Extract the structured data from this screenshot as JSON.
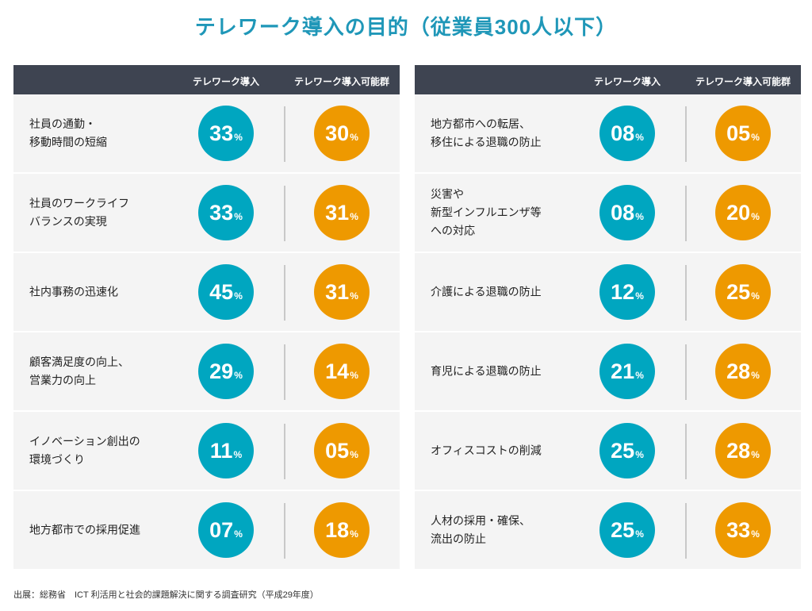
{
  "title": "テレワーク導入の目的（従業員300人以下）",
  "columns": [
    "テレワーク導入",
    "テレワーク導入可能群"
  ],
  "colors": {
    "introduced": "#00a6c0",
    "possible": "#ee9900",
    "header": "#3e4451",
    "title": "#1f97b8"
  },
  "unit": "%",
  "left": [
    {
      "label": "社員の通勤・\n移動時間の短縮",
      "introduced": "33",
      "possible": "30"
    },
    {
      "label": "社員のワークライフ\nバランスの実現",
      "introduced": "33",
      "possible": "31"
    },
    {
      "label": "社内事務の迅速化",
      "introduced": "45",
      "possible": "31"
    },
    {
      "label": "顧客満足度の向上、\n営業力の向上",
      "introduced": "29",
      "possible": "14"
    },
    {
      "label": "イノベーション創出の\n環境づくり",
      "introduced": "11",
      "possible": "05"
    },
    {
      "label": "地方都市での採用促進",
      "introduced": "07",
      "possible": "18"
    }
  ],
  "right": [
    {
      "label": "地方都市への転居、\n移住による退職の防止",
      "introduced": "08",
      "possible": "05"
    },
    {
      "label": "災害や\n新型インフルエンザ等\nへの対応",
      "introduced": "08",
      "possible": "20"
    },
    {
      "label": "介護による退職の防止",
      "introduced": "12",
      "possible": "25"
    },
    {
      "label": "育児による退職の防止",
      "introduced": "21",
      "possible": "28"
    },
    {
      "label": "オフィスコストの削減",
      "introduced": "25",
      "possible": "28"
    },
    {
      "label": "人材の採用・確保、\n流出の防止",
      "introduced": "25",
      "possible": "33"
    }
  ],
  "source": "出展：総務省　ICT 利活用と社会的課題解決に関する調査研究（平成29年度）"
}
